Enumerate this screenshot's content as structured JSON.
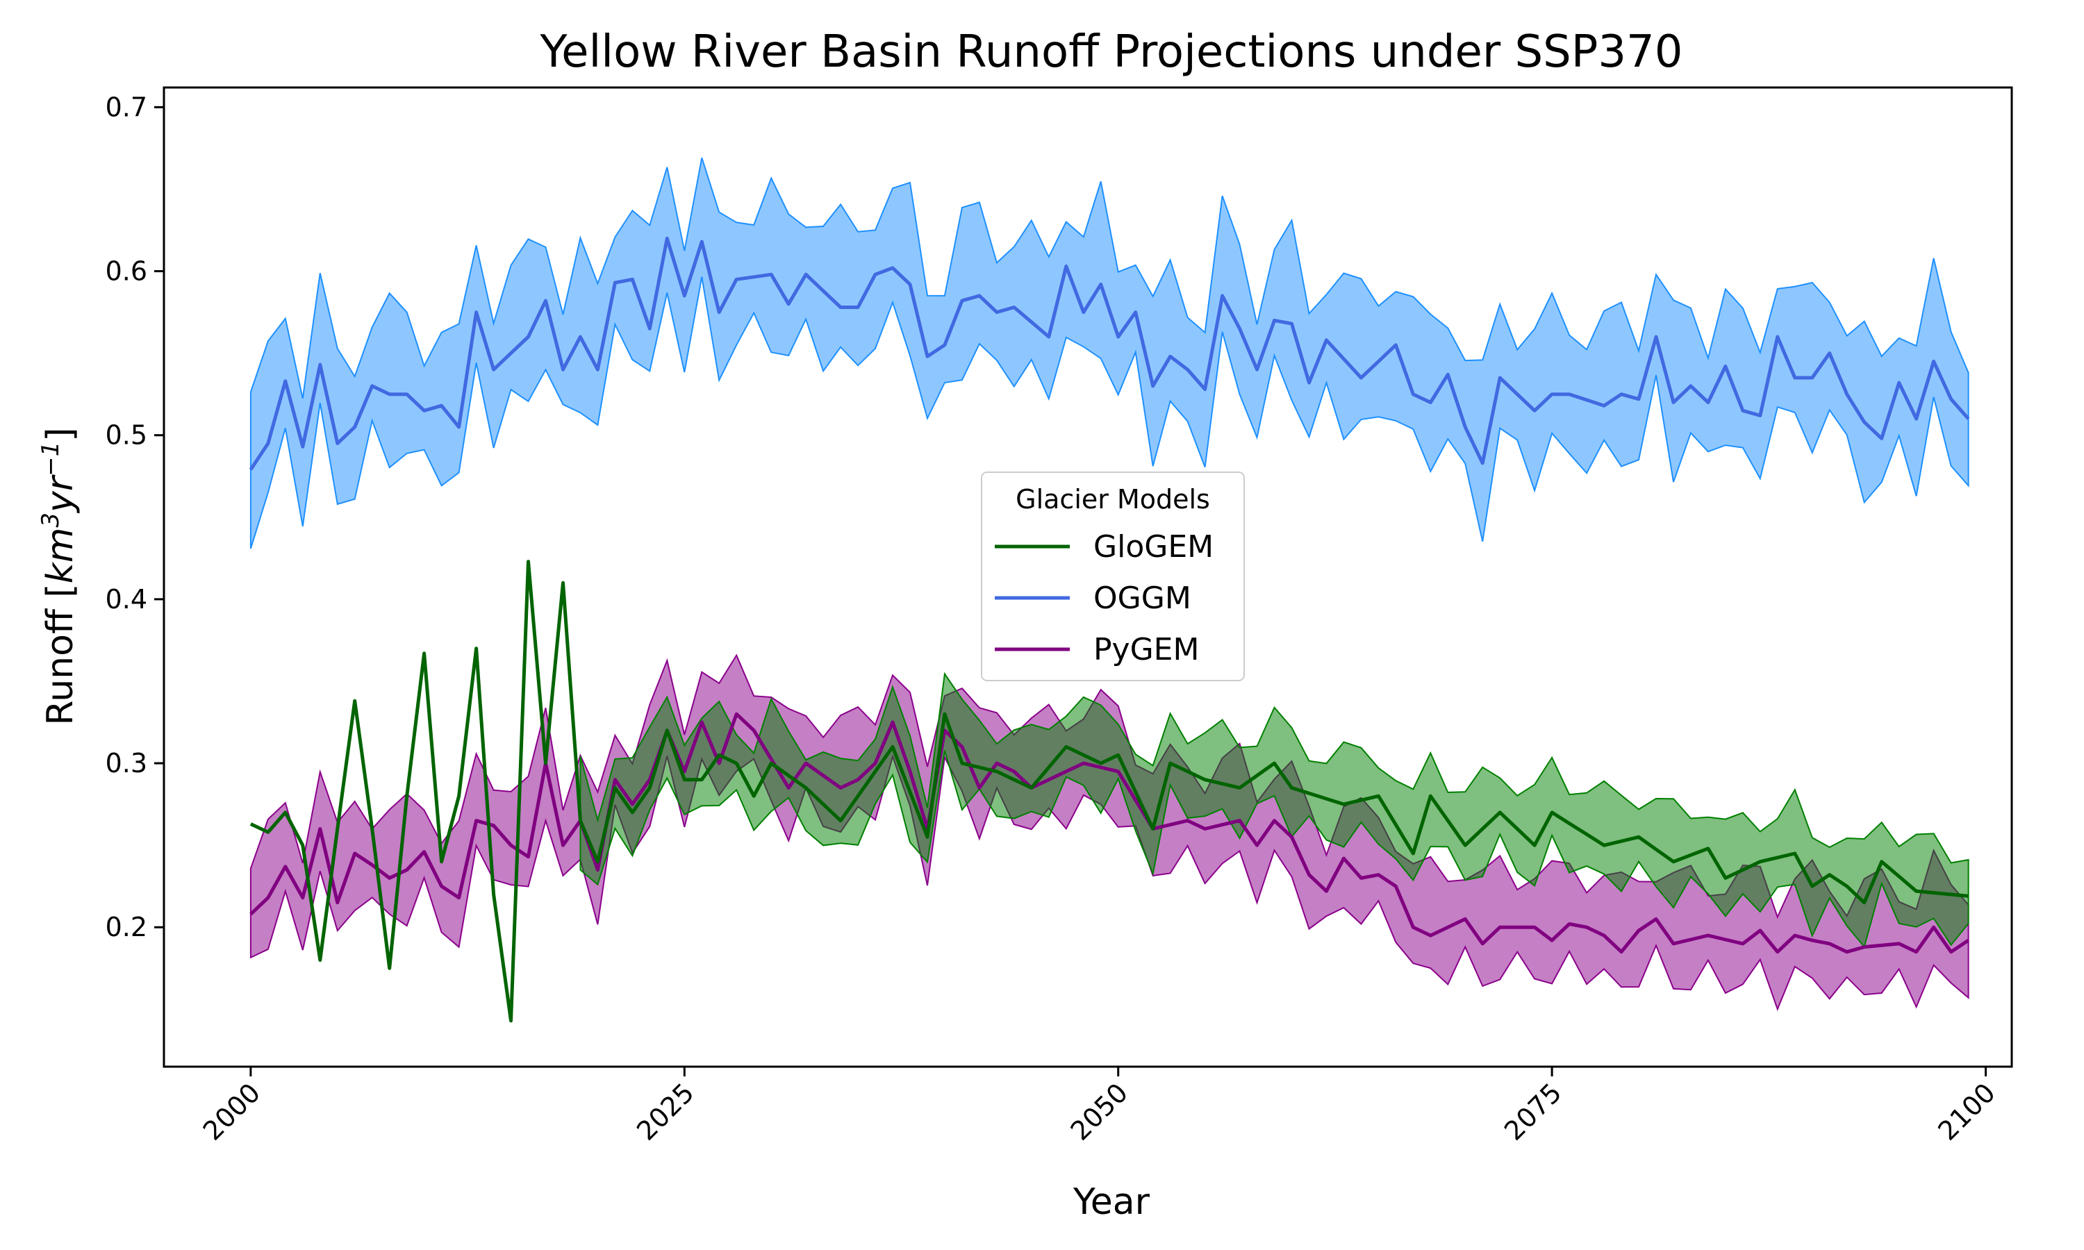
{
  "chart_data": {
    "type": "line",
    "title": "Yellow River Basin Runoff Projections under SSP370",
    "xlabel": "Year",
    "ylabel_main": "Runoff [",
    "ylabel_unit": "km",
    "ylabel_exp1": "3",
    "ylabel_unit2": "yr",
    "ylabel_exp2": "−1",
    "ylabel_close": "]",
    "xlim": [
      1995,
      2101.5
    ],
    "ylim": [
      0.115,
      0.712
    ],
    "xticks": [
      2000,
      2025,
      2050,
      2075,
      2100
    ],
    "xtick_labels": [
      "2000",
      "2025",
      "2050",
      "2075",
      "2100"
    ],
    "yticks": [
      0.2,
      0.3,
      0.4,
      0.5,
      0.6,
      0.7
    ],
    "ytick_labels": [
      "0.2",
      "0.3",
      "0.4",
      "0.5",
      "0.6",
      "0.7"
    ],
    "legend_title": "Glacier Models",
    "legend_position": "center",
    "grid": false,
    "x_start": 2000,
    "x_end": 2099,
    "series": [
      {
        "name": "GloGEM",
        "color": "#006400",
        "fill": "#008000",
        "fill_start": 2019,
        "anchors": [
          [
            2000,
            0.263
          ],
          [
            2001,
            0.258
          ],
          [
            2002,
            0.27
          ],
          [
            2003,
            0.25
          ],
          [
            2004,
            0.18
          ],
          [
            2005,
            0.26
          ],
          [
            2006,
            0.338
          ],
          [
            2007,
            0.26
          ],
          [
            2008,
            0.175
          ],
          [
            2009,
            0.28
          ],
          [
            2010,
            0.367
          ],
          [
            2011,
            0.24
          ],
          [
            2012,
            0.28
          ],
          [
            2013,
            0.37
          ],
          [
            2014,
            0.22
          ],
          [
            2015,
            0.143
          ],
          [
            2016,
            0.423
          ],
          [
            2017,
            0.3
          ],
          [
            2018,
            0.41
          ],
          [
            2019,
            0.265
          ],
          [
            2020,
            0.24
          ],
          [
            2021,
            0.285
          ],
          [
            2022,
            0.27
          ],
          [
            2023,
            0.285
          ],
          [
            2024,
            0.32
          ],
          [
            2025,
            0.29
          ],
          [
            2026,
            0.29
          ],
          [
            2027,
            0.305
          ],
          [
            2028,
            0.3
          ],
          [
            2029,
            0.28
          ],
          [
            2030,
            0.3
          ],
          [
            2032,
            0.285
          ],
          [
            2034,
            0.265
          ],
          [
            2037,
            0.31
          ],
          [
            2039,
            0.255
          ],
          [
            2040,
            0.33
          ],
          [
            2041,
            0.3
          ],
          [
            2043,
            0.295
          ],
          [
            2045,
            0.285
          ],
          [
            2047,
            0.31
          ],
          [
            2049,
            0.3
          ],
          [
            2050,
            0.305
          ],
          [
            2052,
            0.26
          ],
          [
            2053,
            0.3
          ],
          [
            2055,
            0.29
          ],
          [
            2057,
            0.285
          ],
          [
            2059,
            0.3
          ],
          [
            2060,
            0.285
          ],
          [
            2063,
            0.275
          ],
          [
            2065,
            0.28
          ],
          [
            2067,
            0.245
          ],
          [
            2068,
            0.28
          ],
          [
            2070,
            0.25
          ],
          [
            2072,
            0.27
          ],
          [
            2074,
            0.25
          ],
          [
            2075,
            0.27
          ],
          [
            2078,
            0.25
          ],
          [
            2080,
            0.255
          ],
          [
            2082,
            0.24
          ],
          [
            2084,
            0.248
          ],
          [
            2085,
            0.23
          ],
          [
            2087,
            0.24
          ],
          [
            2089,
            0.245
          ],
          [
            2090,
            0.225
          ],
          [
            2091,
            0.232
          ],
          [
            2092,
            0.225
          ],
          [
            2093,
            0.215
          ],
          [
            2094,
            0.24
          ],
          [
            2096,
            0.222
          ],
          [
            2099,
            0.219
          ]
        ],
        "band_low_offset": 0.022,
        "band_high_offset": 0.028
      },
      {
        "name": "OGGM",
        "color": "#4169e1",
        "fill": "#1e90ff",
        "fill_start": 2000,
        "anchors": [
          [
            2000,
            0.479
          ],
          [
            2001,
            0.495
          ],
          [
            2002,
            0.533
          ],
          [
            2003,
            0.493
          ],
          [
            2004,
            0.543
          ],
          [
            2005,
            0.495
          ],
          [
            2006,
            0.505
          ],
          [
            2007,
            0.53
          ],
          [
            2008,
            0.525
          ],
          [
            2009,
            0.525
          ],
          [
            2010,
            0.515
          ],
          [
            2011,
            0.518
          ],
          [
            2012,
            0.505
          ],
          [
            2013,
            0.575
          ],
          [
            2014,
            0.54
          ],
          [
            2015,
            0.55
          ],
          [
            2016,
            0.56
          ],
          [
            2017,
            0.582
          ],
          [
            2018,
            0.54
          ],
          [
            2019,
            0.56
          ],
          [
            2020,
            0.54
          ],
          [
            2021,
            0.593
          ],
          [
            2022,
            0.595
          ],
          [
            2023,
            0.565
          ],
          [
            2024,
            0.62
          ],
          [
            2025,
            0.585
          ],
          [
            2026,
            0.618
          ],
          [
            2027,
            0.575
          ],
          [
            2028,
            0.595
          ],
          [
            2030,
            0.598
          ],
          [
            2031,
            0.58
          ],
          [
            2032,
            0.598
          ],
          [
            2034,
            0.578
          ],
          [
            2035,
            0.578
          ],
          [
            2036,
            0.598
          ],
          [
            2037,
            0.602
          ],
          [
            2038,
            0.592
          ],
          [
            2039,
            0.548
          ],
          [
            2040,
            0.555
          ],
          [
            2041,
            0.582
          ],
          [
            2042,
            0.585
          ],
          [
            2043,
            0.575
          ],
          [
            2044,
            0.578
          ],
          [
            2046,
            0.56
          ],
          [
            2047,
            0.603
          ],
          [
            2048,
            0.575
          ],
          [
            2049,
            0.592
          ],
          [
            2050,
            0.56
          ],
          [
            2051,
            0.575
          ],
          [
            2052,
            0.53
          ],
          [
            2053,
            0.548
          ],
          [
            2054,
            0.54
          ],
          [
            2055,
            0.528
          ],
          [
            2056,
            0.585
          ],
          [
            2057,
            0.565
          ],
          [
            2058,
            0.54
          ],
          [
            2059,
            0.57
          ],
          [
            2060,
            0.568
          ],
          [
            2061,
            0.532
          ],
          [
            2062,
            0.558
          ],
          [
            2064,
            0.535
          ],
          [
            2066,
            0.555
          ],
          [
            2067,
            0.525
          ],
          [
            2068,
            0.52
          ],
          [
            2069,
            0.537
          ],
          [
            2070,
            0.505
          ],
          [
            2071,
            0.483
          ],
          [
            2072,
            0.535
          ],
          [
            2074,
            0.515
          ],
          [
            2075,
            0.525
          ],
          [
            2076,
            0.525
          ],
          [
            2078,
            0.518
          ],
          [
            2079,
            0.525
          ],
          [
            2080,
            0.522
          ],
          [
            2081,
            0.56
          ],
          [
            2082,
            0.52
          ],
          [
            2083,
            0.53
          ],
          [
            2084,
            0.52
          ],
          [
            2085,
            0.542
          ],
          [
            2086,
            0.515
          ],
          [
            2087,
            0.512
          ],
          [
            2088,
            0.56
          ],
          [
            2089,
            0.535
          ],
          [
            2090,
            0.535
          ],
          [
            2091,
            0.55
          ],
          [
            2092,
            0.525
          ],
          [
            2093,
            0.508
          ],
          [
            2094,
            0.498
          ],
          [
            2095,
            0.532
          ],
          [
            2096,
            0.51
          ],
          [
            2097,
            0.545
          ],
          [
            2098,
            0.522
          ],
          [
            2099,
            0.51
          ]
        ],
        "band_low_offset": 0.035,
        "band_high_offset": 0.045
      },
      {
        "name": "PyGEM",
        "color": "#800080",
        "fill": "#8b008b",
        "fill_start": 2000,
        "anchors": [
          [
            2000,
            0.208
          ],
          [
            2001,
            0.218
          ],
          [
            2002,
            0.237
          ],
          [
            2003,
            0.218
          ],
          [
            2004,
            0.26
          ],
          [
            2005,
            0.215
          ],
          [
            2006,
            0.245
          ],
          [
            2007,
            0.238
          ],
          [
            2008,
            0.23
          ],
          [
            2009,
            0.235
          ],
          [
            2010,
            0.246
          ],
          [
            2011,
            0.225
          ],
          [
            2012,
            0.218
          ],
          [
            2013,
            0.265
          ],
          [
            2014,
            0.262
          ],
          [
            2015,
            0.25
          ],
          [
            2016,
            0.243
          ],
          [
            2017,
            0.3
          ],
          [
            2018,
            0.25
          ],
          [
            2019,
            0.265
          ],
          [
            2020,
            0.235
          ],
          [
            2021,
            0.29
          ],
          [
            2022,
            0.275
          ],
          [
            2023,
            0.29
          ],
          [
            2024,
            0.32
          ],
          [
            2025,
            0.295
          ],
          [
            2026,
            0.325
          ],
          [
            2027,
            0.3
          ],
          [
            2028,
            0.33
          ],
          [
            2029,
            0.32
          ],
          [
            2031,
            0.285
          ],
          [
            2032,
            0.3
          ],
          [
            2034,
            0.285
          ],
          [
            2035,
            0.29
          ],
          [
            2036,
            0.3
          ],
          [
            2037,
            0.325
          ],
          [
            2038,
            0.295
          ],
          [
            2039,
            0.26
          ],
          [
            2040,
            0.32
          ],
          [
            2041,
            0.31
          ],
          [
            2042,
            0.285
          ],
          [
            2043,
            0.3
          ],
          [
            2044,
            0.295
          ],
          [
            2045,
            0.285
          ],
          [
            2047,
            0.295
          ],
          [
            2048,
            0.3
          ],
          [
            2050,
            0.295
          ],
          [
            2052,
            0.26
          ],
          [
            2054,
            0.265
          ],
          [
            2055,
            0.26
          ],
          [
            2057,
            0.265
          ],
          [
            2058,
            0.25
          ],
          [
            2059,
            0.265
          ],
          [
            2060,
            0.255
          ],
          [
            2061,
            0.232
          ],
          [
            2062,
            0.222
          ],
          [
            2063,
            0.242
          ],
          [
            2064,
            0.23
          ],
          [
            2065,
            0.232
          ],
          [
            2066,
            0.225
          ],
          [
            2067,
            0.2
          ],
          [
            2068,
            0.195
          ],
          [
            2069,
            0.2
          ],
          [
            2070,
            0.205
          ],
          [
            2071,
            0.19
          ],
          [
            2072,
            0.2
          ],
          [
            2074,
            0.2
          ],
          [
            2075,
            0.192
          ],
          [
            2076,
            0.202
          ],
          [
            2077,
            0.2
          ],
          [
            2078,
            0.195
          ],
          [
            2079,
            0.185
          ],
          [
            2080,
            0.198
          ],
          [
            2081,
            0.205
          ],
          [
            2082,
            0.19
          ],
          [
            2084,
            0.195
          ],
          [
            2086,
            0.19
          ],
          [
            2087,
            0.198
          ],
          [
            2088,
            0.185
          ],
          [
            2089,
            0.195
          ],
          [
            2090,
            0.192
          ],
          [
            2091,
            0.19
          ],
          [
            2092,
            0.185
          ],
          [
            2093,
            0.188
          ],
          [
            2095,
            0.19
          ],
          [
            2096,
            0.185
          ],
          [
            2097,
            0.2
          ],
          [
            2098,
            0.185
          ],
          [
            2099,
            0.192
          ]
        ],
        "band_low_offset": 0.025,
        "band_high_offset": 0.035
      }
    ]
  }
}
